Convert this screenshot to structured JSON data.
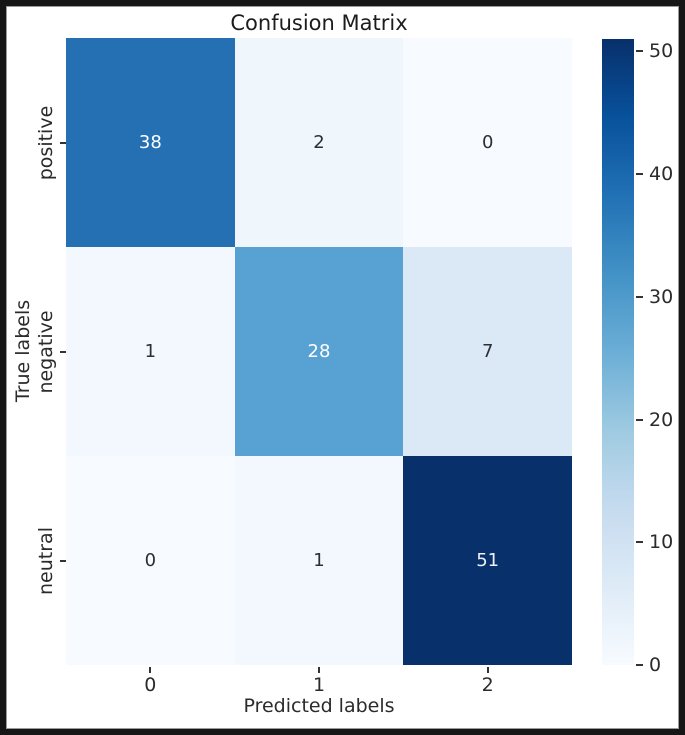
{
  "chart_data": {
    "type": "heatmap",
    "title": "Confusion Matrix",
    "xlabel": "Predicted labels",
    "ylabel": "True labels",
    "x_ticklabels": [
      "0",
      "1",
      "2"
    ],
    "y_ticklabels": [
      "positive",
      "negative",
      "neutral"
    ],
    "values": [
      [
        38,
        2,
        0
      ],
      [
        1,
        28,
        7
      ],
      [
        0,
        1,
        51
      ]
    ],
    "vmin": 0,
    "vmax": 51,
    "colormap": "Blues",
    "cell_colors": [
      [
        "#2470b3",
        "#eff6fc",
        "#f7fbff"
      ],
      [
        "#f3f8fe",
        "#58a1d3",
        "#dbe8f5"
      ],
      [
        "#f7fbff",
        "#f3f8fe",
        "#08306b"
      ]
    ],
    "cell_text_colors": [
      [
        "#ffffff",
        "#2b2f36",
        "#2b2f36"
      ],
      [
        "#2b2f36",
        "#ffffff",
        "#2b2f36"
      ],
      [
        "#2b2f36",
        "#2b2f36",
        "#eef0f6"
      ]
    ],
    "colorbar_ticks": [
      0,
      10,
      20,
      30,
      40,
      50
    ],
    "colorbar_gradient_top_to_bottom": [
      "#08306b",
      "#08519c",
      "#2171b5",
      "#4292c6",
      "#6baed6",
      "#9ecae1",
      "#c6dbef",
      "#deebf7",
      "#f7fbff"
    ],
    "frame_color": "#161616"
  }
}
